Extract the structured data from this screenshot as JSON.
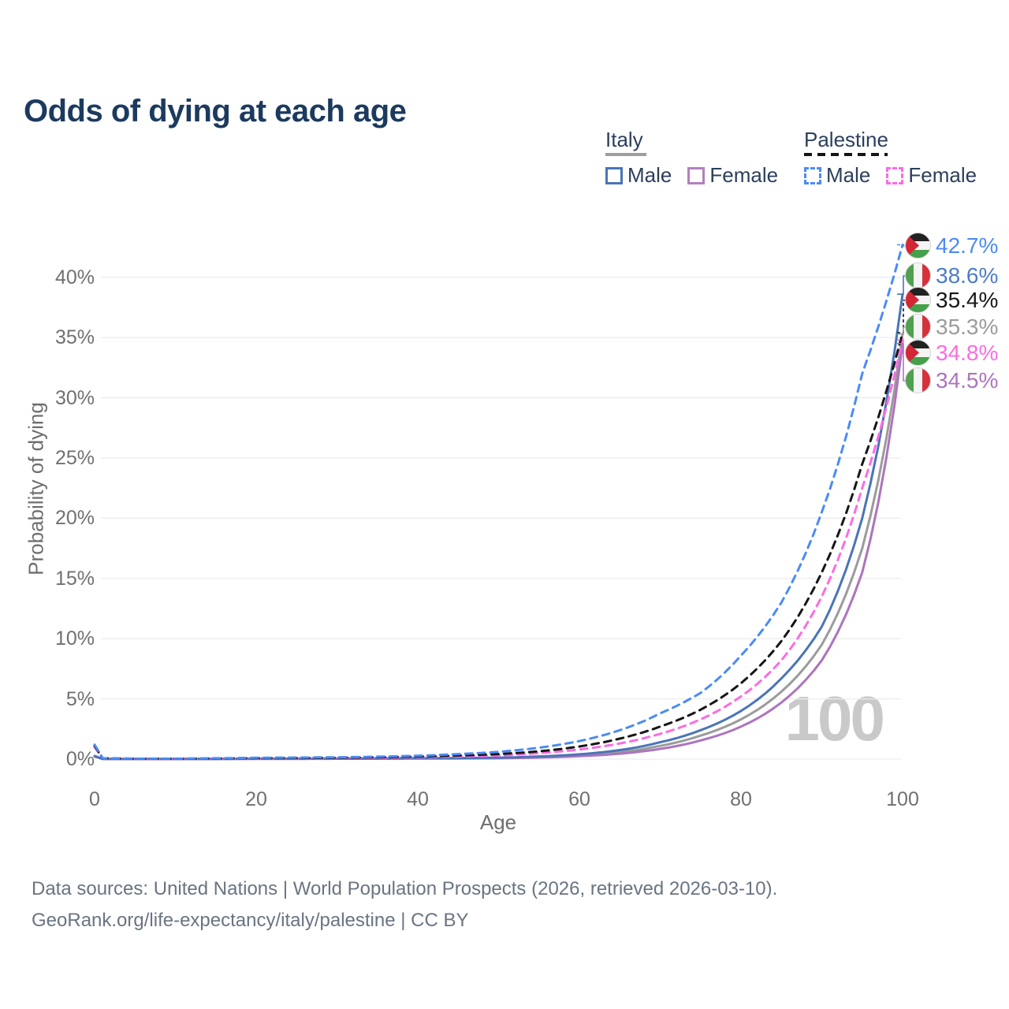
{
  "header": {
    "title": "Odds of dying at each age"
  },
  "legend": {
    "groups": [
      {
        "title": "Italy",
        "underline_style": "solid",
        "underline_color": "#9e9e9e",
        "items": [
          {
            "label": "Male",
            "color": "#4a74b8",
            "style": "solid"
          },
          {
            "label": "Female",
            "color": "#b57fc0",
            "style": "solid"
          }
        ]
      },
      {
        "title": "Palestine",
        "underline_style": "dashed",
        "underline_color": "#141414",
        "items": [
          {
            "label": "Male",
            "color": "#4b8bf5",
            "style": "dashed"
          },
          {
            "label": "Female",
            "color": "#fb6ce4",
            "style": "dashed"
          }
        ]
      }
    ]
  },
  "chart_data": {
    "type": "line",
    "title": "Odds of dying at each age",
    "xlabel": "Age",
    "ylabel": "Probability of dying",
    "x_ticks": [
      "0",
      "20",
      "40",
      "60",
      "80",
      "100"
    ],
    "y_ticks": [
      "0%",
      "5%",
      "10%",
      "15%",
      "20%",
      "25%",
      "30%",
      "35%",
      "40%"
    ],
    "xlim": [
      0,
      100
    ],
    "ylim_percent": [
      0,
      43
    ],
    "grid": true,
    "legend_position": "top-right",
    "watermark_age": "100",
    "ages": [
      0,
      1,
      5,
      10,
      15,
      20,
      25,
      30,
      35,
      40,
      45,
      50,
      55,
      60,
      65,
      70,
      75,
      80,
      85,
      90,
      95,
      100
    ],
    "series": [
      {
        "id": "italy-both",
        "country": "Italy",
        "group": "Both",
        "style": "solid",
        "color": "#9b9b9b",
        "label_color": "#9b9b9b",
        "end_label": "35.3%",
        "end_value": 35.3,
        "flag": "italy-flag-icon",
        "values_percent": [
          0.24,
          0.018,
          0.008,
          0.008,
          0.015,
          0.03,
          0.03,
          0.04,
          0.045,
          0.06,
          0.07,
          0.09,
          0.17,
          0.31,
          0.58,
          1.1,
          1.95,
          3.3,
          5.6,
          9.5,
          17.5,
          35.3
        ]
      },
      {
        "id": "italy-female",
        "country": "Italy",
        "group": "Female",
        "style": "solid",
        "color": "#ad74bd",
        "label_color": "#ad74bd",
        "end_label": "34.5%",
        "end_value": 34.5,
        "flag": "italy-flag-icon",
        "values_percent": [
          0.21,
          0.015,
          0.007,
          0.007,
          0.01,
          0.02,
          0.02,
          0.03,
          0.035,
          0.045,
          0.055,
          0.07,
          0.13,
          0.24,
          0.45,
          0.85,
          1.55,
          2.7,
          4.7,
          8.2,
          15.5,
          34.5
        ]
      },
      {
        "id": "italy-male",
        "country": "Italy",
        "group": "Male",
        "style": "solid",
        "color": "#4a74b8",
        "label_color": "#4d7cc7",
        "end_label": "38.6%",
        "end_value": 38.6,
        "flag": "italy-flag-icon",
        "values_percent": [
          0.26,
          0.02,
          0.01,
          0.01,
          0.02,
          0.04,
          0.04,
          0.05,
          0.06,
          0.08,
          0.09,
          0.12,
          0.22,
          0.4,
          0.75,
          1.4,
          2.4,
          4.0,
          6.7,
          11.0,
          20.0,
          38.6
        ]
      },
      {
        "id": "palestine-female",
        "country": "Palestine",
        "group": "Female",
        "style": "dashed",
        "color": "#fb6ce4",
        "label_color": "#fb6ce4",
        "end_label": "34.8%",
        "end_value": 34.8,
        "flag": "palestine-flag-icon",
        "values_percent": [
          1.0,
          0.06,
          0.03,
          0.025,
          0.04,
          0.05,
          0.06,
          0.08,
          0.11,
          0.15,
          0.22,
          0.3,
          0.5,
          0.8,
          1.3,
          2.1,
          3.3,
          5.2,
          8.2,
          13.5,
          22.5,
          34.8
        ]
      },
      {
        "id": "palestine-both",
        "country": "Palestine",
        "group": "Both",
        "style": "dashed",
        "color": "#161616",
        "label_color": "#161616",
        "end_label": "35.4%",
        "end_value": 35.4,
        "flag": "palestine-flag-icon",
        "values_percent": [
          1.1,
          0.065,
          0.035,
          0.03,
          0.055,
          0.08,
          0.09,
          0.11,
          0.15,
          0.21,
          0.3,
          0.42,
          0.65,
          1.05,
          1.7,
          2.7,
          4.1,
          6.3,
          9.8,
          15.5,
          24.5,
          35.4
        ]
      },
      {
        "id": "palestine-male",
        "country": "Palestine",
        "group": "Male",
        "style": "dashed",
        "color": "#4b8bf5",
        "label_color": "#4b8bf5",
        "end_label": "42.7%",
        "end_value": 42.7,
        "flag": "palestine-flag-icon",
        "values_percent": [
          1.2,
          0.07,
          0.04,
          0.04,
          0.07,
          0.11,
          0.13,
          0.15,
          0.2,
          0.28,
          0.42,
          0.6,
          0.95,
          1.5,
          2.4,
          3.8,
          5.5,
          8.6,
          13.0,
          20.5,
          32.0,
          42.7
        ]
      }
    ],
    "flag_colors": {
      "italy": {
        "green": "#4fa14f",
        "white": "#f4f4f4",
        "red": "#d6303c"
      },
      "palestine": {
        "black": "#222222",
        "white": "#f4f4f4",
        "green": "#44a04b",
        "red": "#d32636"
      }
    }
  },
  "footer": {
    "line1": "Data sources: United Nations | World Population Prospects (2026, retrieved 2026-03-10).",
    "line2": "GeoRank.org/life-expectancy/italy/palestine | CC BY"
  }
}
